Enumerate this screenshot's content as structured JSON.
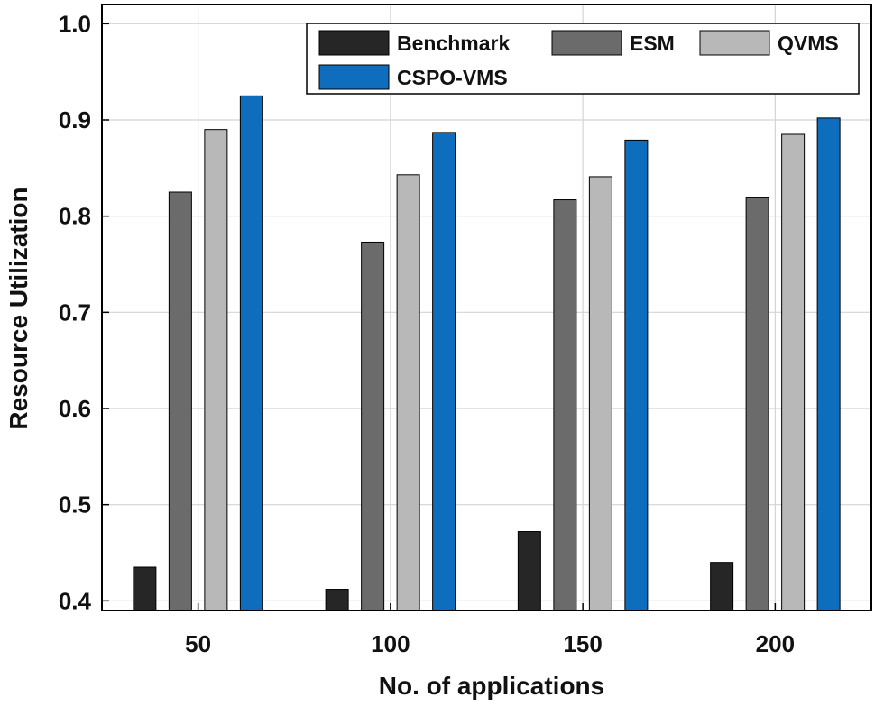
{
  "chart_data": {
    "type": "bar",
    "title": "",
    "xlabel": "No. of applications",
    "ylabel": "Resource Utilization",
    "categories": [
      "50",
      "100",
      "150",
      "200"
    ],
    "ylim": [
      0.39,
      1.02
    ],
    "yticks": [
      0.4,
      0.5,
      0.6,
      0.7,
      0.8,
      0.9,
      1.0
    ],
    "ytick_labels": [
      "0.4",
      "0.5",
      "0.6",
      "0.7",
      "0.8",
      "0.9",
      "1.0"
    ],
    "grid": true,
    "legend_position": "top-right",
    "series": [
      {
        "name": "Benchmark",
        "color": "#262626",
        "values": [
          0.435,
          0.412,
          0.472,
          0.44
        ]
      },
      {
        "name": "ESM",
        "color": "#6b6b6b",
        "values": [
          0.825,
          0.773,
          0.817,
          0.819
        ]
      },
      {
        "name": "QVMS",
        "color": "#b8b8b8",
        "values": [
          0.89,
          0.843,
          0.841,
          0.885
        ]
      },
      {
        "name": "CSPO-VMS",
        "color": "#0f6dbd",
        "values": [
          0.925,
          0.887,
          0.879,
          0.902
        ]
      }
    ]
  }
}
